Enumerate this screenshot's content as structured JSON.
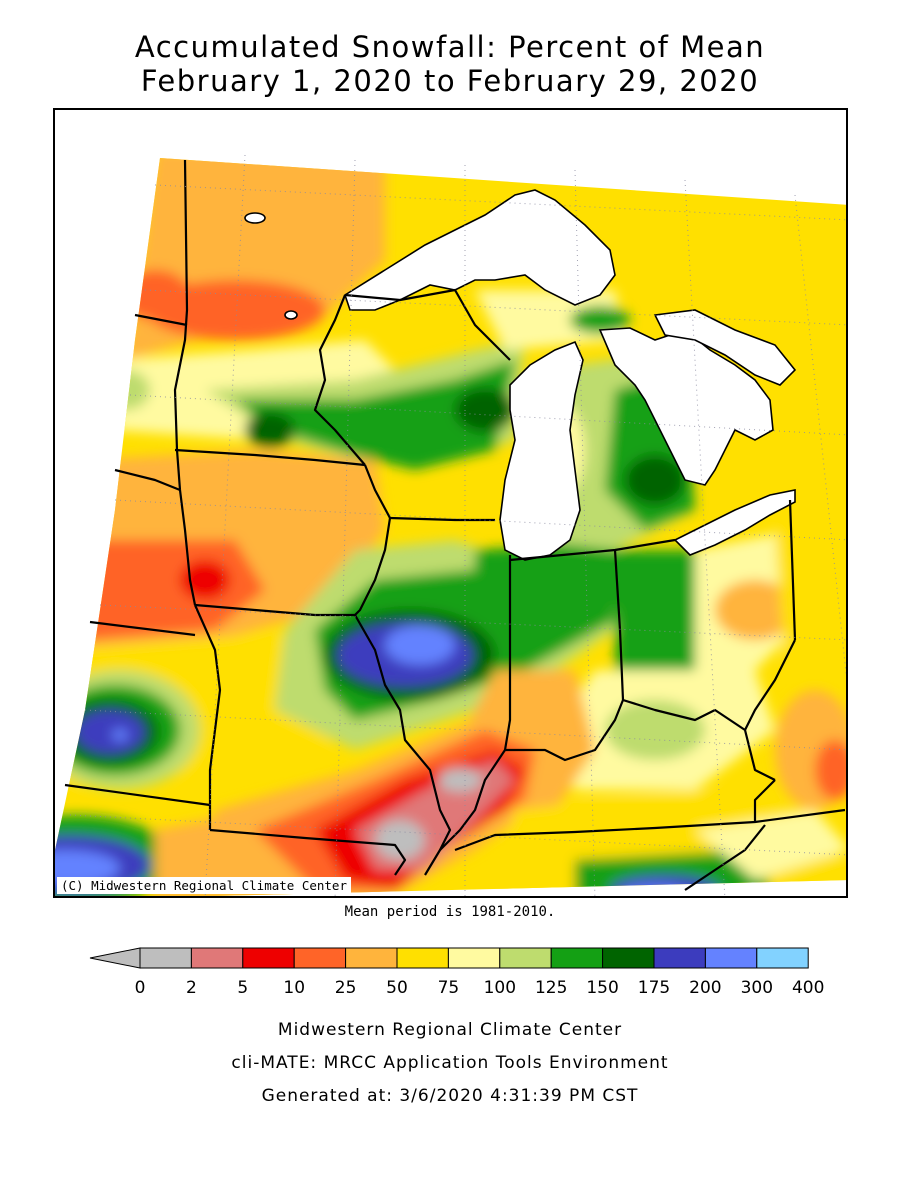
{
  "title_line1": "Accumulated Snowfall: Percent of Mean",
  "title_line2": "February 1, 2020 to February 29, 2020",
  "copyright": "(C) Midwestern Regional Climate Center",
  "mean_period": "Mean period is 1981-2010.",
  "legend": {
    "ticks": [
      "0",
      "2",
      "5",
      "10",
      "25",
      "50",
      "75",
      "100",
      "125",
      "150",
      "175",
      "200",
      "300",
      "400"
    ],
    "colors": [
      "#bebebe",
      "#e07878",
      "#ee0000",
      "#ff6428",
      "#ffb43c",
      "#ffe000",
      "#fffaa0",
      "#bedc6e",
      "#14a014",
      "#006400",
      "#3c3cbe",
      "#6482ff",
      "#82d2ff"
    ],
    "under_color": "#bebebe"
  },
  "footer": {
    "line1": "Midwestern Regional Climate Center",
    "line2": "cli-MATE: MRCC Application Tools Environment",
    "line3": "Generated at: 3/6/2020 4:31:39 PM CST"
  }
}
